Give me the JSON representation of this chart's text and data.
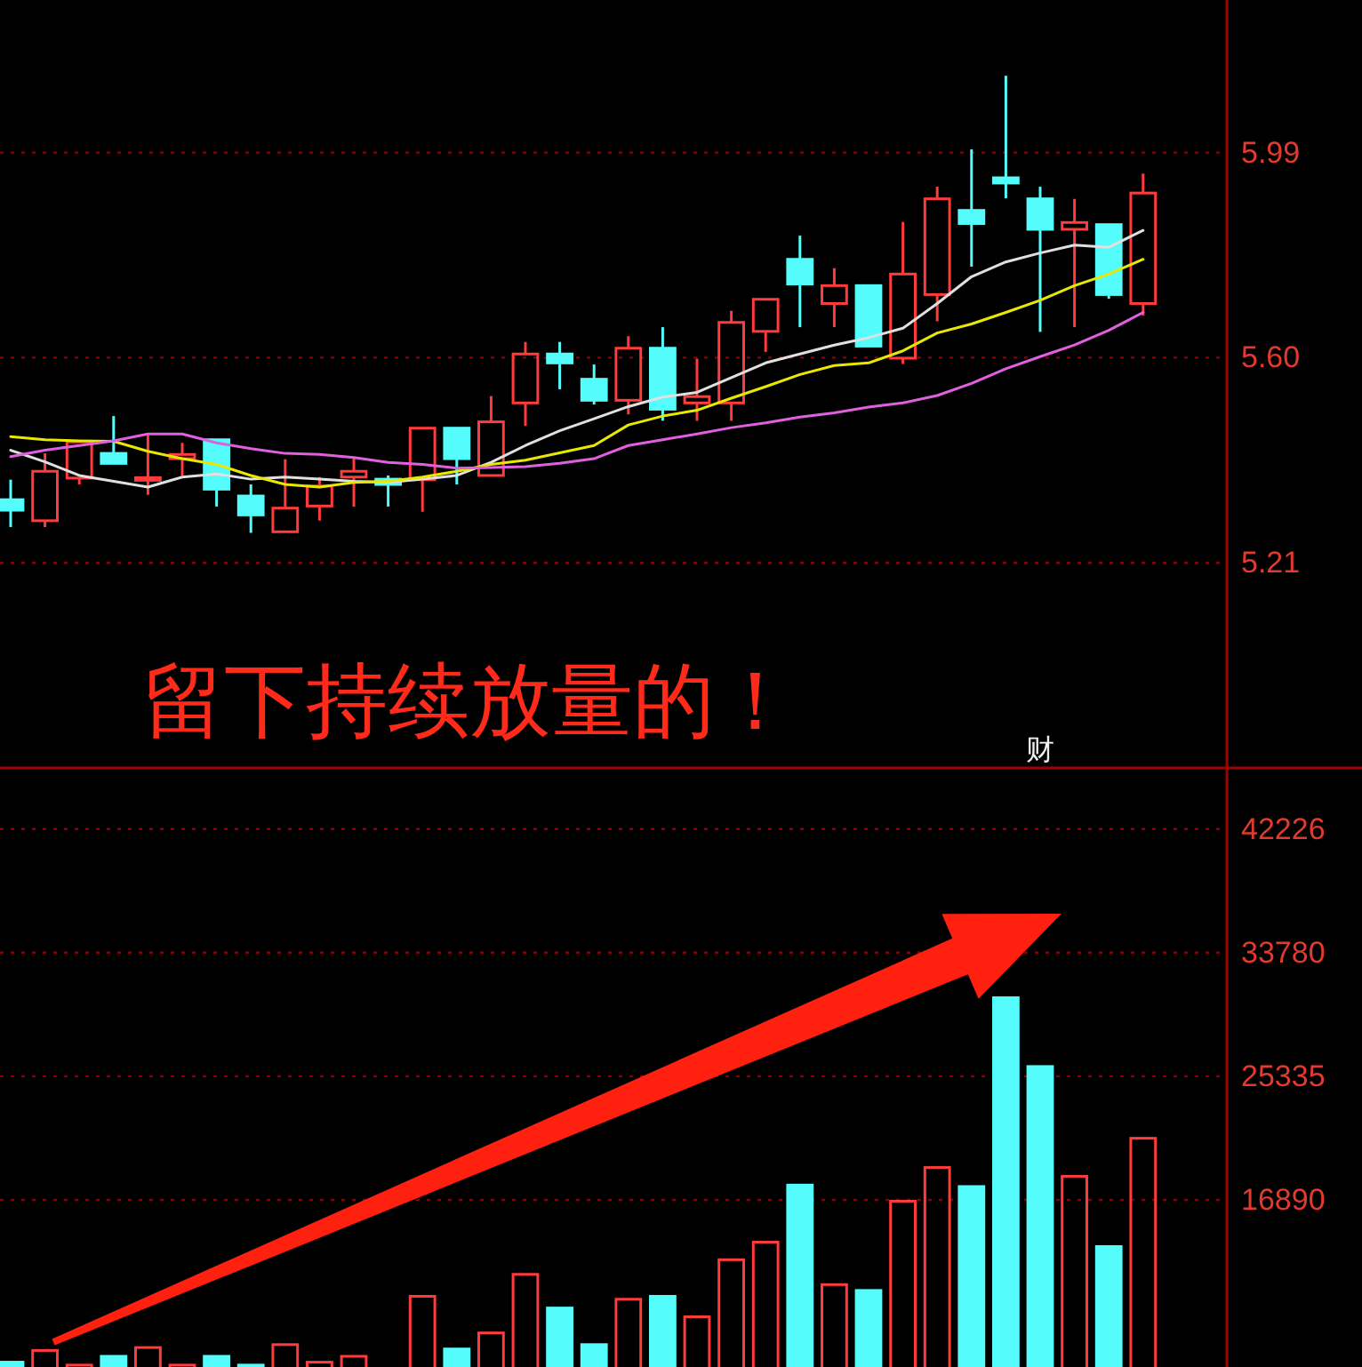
{
  "chart_data": [
    {
      "type": "candlestick",
      "categories": [
        null,
        null,
        null,
        null,
        null,
        null,
        null,
        null,
        null,
        null,
        null,
        null,
        null,
        null,
        null,
        null,
        null,
        null,
        null,
        null,
        null,
        null,
        null,
        null,
        null,
        null,
        null,
        null,
        null,
        null,
        null,
        null,
        null,
        null
      ],
      "ohlc": [
        [
          5.33,
          5.368,
          5.278,
          5.31
        ],
        [
          5.29,
          5.418,
          5.278,
          5.384
        ],
        [
          5.371,
          5.44,
          5.359,
          5.44
        ],
        [
          5.418,
          5.489,
          5.399,
          5.399
        ],
        [
          5.37,
          5.453,
          5.339,
          5.372
        ],
        [
          5.408,
          5.438,
          5.376,
          5.416
        ],
        [
          5.444,
          5.444,
          5.317,
          5.35
        ],
        [
          5.337,
          5.359,
          5.267,
          5.301
        ],
        [
          5.269,
          5.407,
          5.269,
          5.314
        ],
        [
          5.318,
          5.373,
          5.29,
          5.356
        ],
        [
          5.373,
          5.41,
          5.317,
          5.384
        ],
        [
          5.369,
          5.376,
          5.317,
          5.359
        ],
        [
          5.368,
          5.466,
          5.307,
          5.466
        ],
        [
          5.466,
          5.466,
          5.359,
          5.408
        ],
        [
          5.376,
          5.527,
          5.376,
          5.478
        ],
        [
          5.514,
          5.63,
          5.47,
          5.607
        ],
        [
          5.607,
          5.63,
          5.54,
          5.59
        ],
        [
          5.559,
          5.587,
          5.511,
          5.519
        ],
        [
          5.519,
          5.641,
          5.492,
          5.618
        ],
        [
          5.618,
          5.658,
          5.48,
          5.502
        ],
        [
          5.514,
          5.598,
          5.48,
          5.526
        ],
        [
          5.514,
          5.689,
          5.48,
          5.667
        ],
        [
          5.65,
          5.711,
          5.611,
          5.711
        ],
        [
          5.787,
          5.832,
          5.658,
          5.74
        ],
        [
          5.703,
          5.77,
          5.658,
          5.737
        ],
        [
          5.737,
          5.737,
          5.622,
          5.622
        ],
        [
          5.599,
          5.858,
          5.588,
          5.759
        ],
        [
          5.72,
          5.925,
          5.669,
          5.902
        ],
        [
          5.88,
          5.996,
          5.773,
          5.855
        ],
        [
          5.942,
          6.136,
          5.903,
          5.932
        ],
        [
          5.902,
          5.925,
          5.649,
          5.844
        ],
        [
          5.844,
          5.902,
          5.658,
          5.857
        ],
        [
          5.853,
          5.853,
          5.712,
          5.72
        ],
        [
          5.703,
          5.95,
          5.68,
          5.913
        ]
      ],
      "colors": [
        "#54fcfc",
        "#ff3b3b",
        "#ff3b3b",
        "#54fcfc",
        "#ff3b3b",
        "#ff3b3b",
        "#54fcfc",
        "#54fcfc",
        "#ff3b3b",
        "#ff3b3b",
        "#ff3b3b",
        "#54fcfc",
        "#ff3b3b",
        "#54fcfc",
        "#ff3b3b",
        "#ff3b3b",
        "#54fcfc",
        "#54fcfc",
        "#ff3b3b",
        "#54fcfc",
        "#ff3b3b",
        "#ff3b3b",
        "#ff3b3b",
        "#54fcfc",
        "#ff3b3b",
        "#54fcfc",
        "#ff3b3b",
        "#ff3b3b",
        "#54fcfc",
        "#54fcfc",
        "#54fcfc",
        "#ff3b3b",
        "#54fcfc",
        "#ff3b3b"
      ],
      "series": [
        {
          "type": "line",
          "color": "#e0e0e0",
          "values": [
            5.424,
            5.402,
            5.376,
            5.365,
            5.354,
            5.373,
            5.379,
            5.369,
            5.373,
            5.369,
            5.365,
            5.363,
            5.369,
            5.376,
            5.401,
            5.433,
            5.461,
            5.484,
            5.507,
            5.525,
            5.534,
            5.562,
            5.59,
            5.607,
            5.624,
            5.638,
            5.656,
            5.703,
            5.754,
            5.782,
            5.799,
            5.814,
            5.81,
            5.842
          ]
        },
        {
          "type": "line",
          "color": "#e8e800",
          "values": [
            5.45,
            5.444,
            5.442,
            5.441,
            5.422,
            5.408,
            5.397,
            5.376,
            5.359,
            5.354,
            5.363,
            5.365,
            5.373,
            5.384,
            5.397,
            5.405,
            5.419,
            5.433,
            5.472,
            5.489,
            5.5,
            5.523,
            5.545,
            5.568,
            5.585,
            5.59,
            5.613,
            5.647,
            5.664,
            5.686,
            5.709,
            5.737,
            5.759,
            5.787
          ]
        },
        {
          "type": "line",
          "color": "#e060e0",
          "values": [
            5.412,
            5.424,
            5.433,
            5.442,
            5.455,
            5.455,
            5.438,
            5.427,
            5.418,
            5.416,
            5.41,
            5.401,
            5.397,
            5.39,
            5.391,
            5.393,
            5.399,
            5.408,
            5.433,
            5.444,
            5.455,
            5.467,
            5.476,
            5.487,
            5.495,
            5.506,
            5.514,
            5.528,
            5.551,
            5.579,
            5.602,
            5.624,
            5.652,
            5.686
          ]
        }
      ],
      "ylim": [
        4.82,
        6.28
      ],
      "yticks": [
        5.21,
        {
          "value": 5.6,
          "label": "5.60"
        },
        5.99
      ],
      "grid": "y",
      "tick_labels": "y",
      "annotations": [
        "留下持续放量的！",
        "财"
      ]
    },
    {
      "type": "bar",
      "categories": [
        null,
        null,
        null,
        null,
        null,
        null,
        null,
        null,
        null,
        null,
        null,
        null,
        null,
        null,
        null,
        null,
        null,
        null,
        null,
        null,
        null,
        null,
        null,
        null,
        null,
        null,
        null,
        null,
        null,
        null,
        null,
        null,
        null,
        null
      ],
      "values": [
        5800,
        6600,
        5600,
        6200,
        6800,
        5600,
        6200,
        5600,
        7000,
        5800,
        6200,
        null,
        10300,
        6700,
        7800,
        11800,
        9500,
        7000,
        10100,
        10300,
        8900,
        12800,
        14000,
        17900,
        11100,
        10700,
        16800,
        19100,
        17800,
        30700,
        26000,
        18500,
        13700,
        21100
      ],
      "colors": [
        "#54fcfc",
        "#ff3b3b",
        "#ff3b3b",
        "#54fcfc",
        "#ff3b3b",
        "#ff3b3b",
        "#54fcfc",
        "#54fcfc",
        "#ff3b3b",
        "#ff3b3b",
        "#ff3b3b",
        null,
        "#ff3b3b",
        "#54fcfc",
        "#ff3b3b",
        "#ff3b3b",
        "#54fcfc",
        "#54fcfc",
        "#ff3b3b",
        "#54fcfc",
        "#ff3b3b",
        "#ff3b3b",
        "#ff3b3b",
        "#54fcfc",
        "#ff3b3b",
        "#54fcfc",
        "#ff3b3b",
        "#ff3b3b",
        "#54fcfc",
        "#54fcfc",
        "#54fcfc",
        "#ff3b3b",
        "#54fcfc",
        "#ff3b3b"
      ],
      "ylim": [
        5470,
        46400
      ],
      "yticks": [
        16890,
        25335,
        33780,
        42226
      ],
      "grid": "y",
      "tick_labels": "y"
    }
  ]
}
